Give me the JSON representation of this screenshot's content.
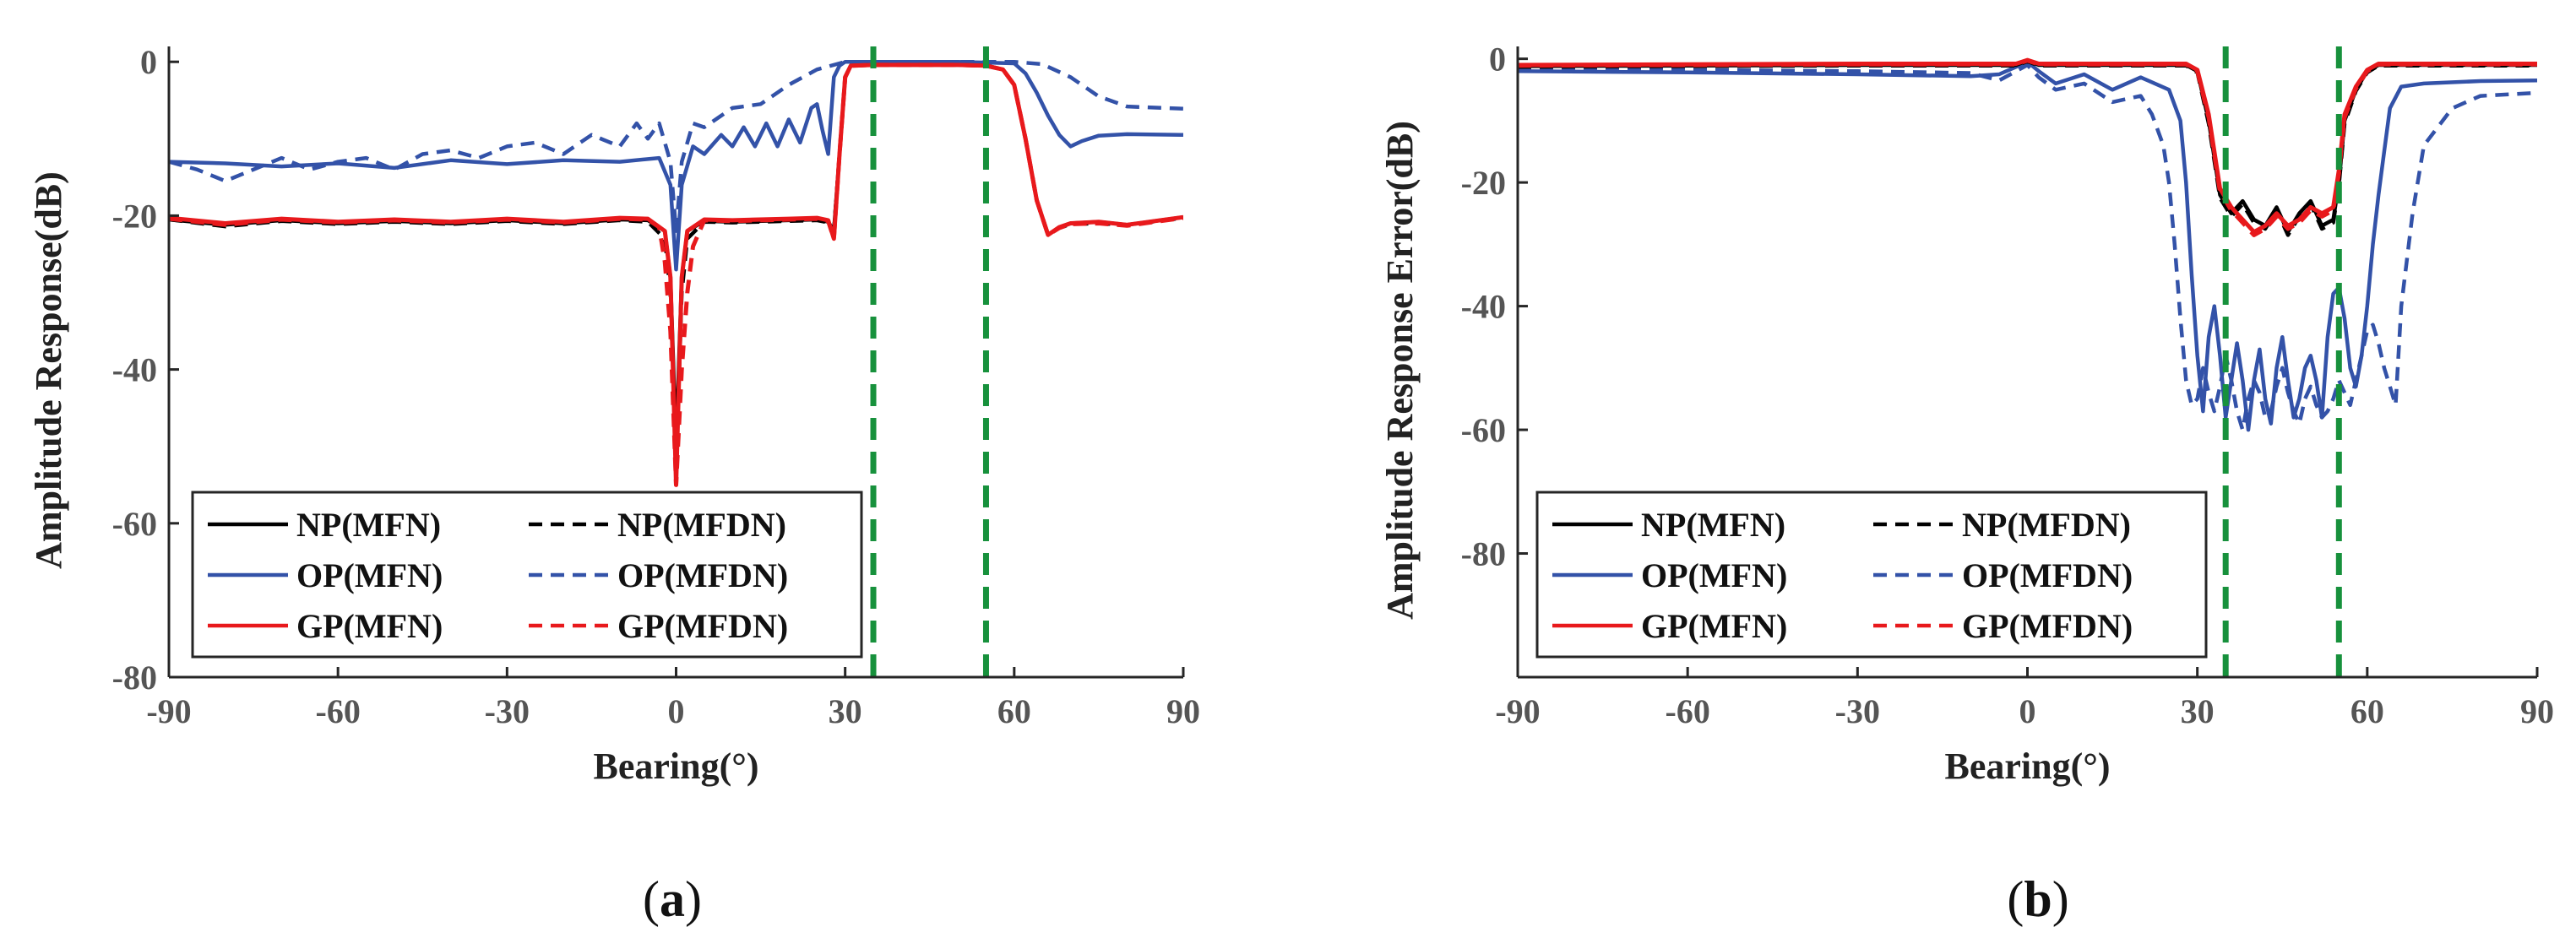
{
  "colors": {
    "NP": "#000000",
    "OP": "#3352a8",
    "GP": "#e8191c",
    "mark": "#17913c",
    "axis": "#262626"
  },
  "panels": [
    {
      "open": "(",
      "letter": "a",
      "close": ")"
    },
    {
      "open": "(",
      "letter": "b",
      "close": ")"
    }
  ],
  "chart_data": [
    {
      "type": "line",
      "title": "",
      "xlabel": "Bearing(°)",
      "ylabel": "Amplitude Response(dB)",
      "xlim": [
        -90,
        90
      ],
      "ylim": [
        -80,
        2
      ],
      "xticks": [
        -90,
        -60,
        -30,
        0,
        30,
        60,
        90
      ],
      "yticks": [
        0,
        -20,
        -40,
        -60,
        -80
      ],
      "xtick_labels": [
        "-90",
        "-60",
        "-30",
        "0",
        "30",
        "60",
        "90"
      ],
      "ytick_labels": [
        "0",
        "-20",
        "-40",
        "-60",
        "-80"
      ],
      "vlines": [
        35,
        55
      ],
      "legend": {
        "position": "bottom-left",
        "entries": [
          "NP(MFN)",
          "NP(MFDN)",
          "OP(MFN)",
          "OP(MFDN)",
          "GP(MFN)",
          "GP(MFDN)"
        ]
      },
      "series": [
        {
          "name": "NP(MFN)",
          "family": "NP",
          "style": "solid",
          "x": [
            -90,
            -80,
            -70,
            -60,
            -50,
            -40,
            -30,
            -20,
            -10,
            -5,
            -2,
            -1,
            0,
            1,
            2,
            5,
            10,
            20,
            25,
            27,
            28,
            29,
            30,
            31,
            35,
            40,
            50,
            55,
            58,
            60,
            62,
            64,
            66,
            68,
            70,
            75,
            80,
            90
          ],
          "y": [
            -20.5,
            -21.2,
            -20.6,
            -21,
            -20.7,
            -21,
            -20.6,
            -21,
            -20.5,
            -20.6,
            -22,
            -28,
            -50,
            -28,
            -22,
            -20.7,
            -20.8,
            -20.6,
            -20.5,
            -20.8,
            -22,
            -12,
            -2,
            -0.5,
            -0.4,
            -0.4,
            -0.4,
            -0.5,
            -1,
            -3,
            -10,
            -18,
            -22.5,
            -21.5,
            -21,
            -20.8,
            -21.2,
            -20.2
          ]
        },
        {
          "name": "NP(MFDN)",
          "family": "NP",
          "style": "dashed",
          "x": [
            -90,
            -80,
            -70,
            -60,
            -50,
            -40,
            -30,
            -20,
            -10,
            -5,
            -2,
            -1,
            0,
            1,
            2,
            5,
            10,
            20,
            25,
            27,
            28,
            29,
            30,
            31,
            35,
            40,
            50,
            55,
            58,
            60,
            62,
            64,
            66,
            68,
            70,
            75,
            80,
            90
          ],
          "y": [
            -20.5,
            -21.4,
            -20.7,
            -21.1,
            -20.8,
            -21.1,
            -20.7,
            -21.1,
            -20.6,
            -20.8,
            -23,
            -30,
            -53,
            -30,
            -23,
            -20.8,
            -20.9,
            -20.7,
            -20.6,
            -20.9,
            -22,
            -12,
            -2,
            -0.5,
            -0.4,
            -0.4,
            -0.4,
            -0.5,
            -1,
            -3,
            -10,
            -18,
            -22.5,
            -21.6,
            -21.1,
            -21,
            -21.2,
            -20.3
          ]
        },
        {
          "name": "OP(MFN)",
          "family": "OP",
          "style": "solid",
          "x": [
            -90,
            -80,
            -70,
            -60,
            -50,
            -40,
            -30,
            -20,
            -10,
            -3,
            -1,
            0,
            1,
            3,
            5,
            8,
            10,
            12,
            14,
            16,
            18,
            20,
            22,
            24,
            25,
            26,
            27,
            28,
            29,
            30,
            35,
            50,
            60,
            62,
            64,
            66,
            68,
            70,
            72,
            75,
            80,
            90
          ],
          "y": [
            -13,
            -13.2,
            -13.6,
            -13.2,
            -13.8,
            -12.8,
            -13.3,
            -12.8,
            -13,
            -12.5,
            -16,
            -27,
            -16,
            -11,
            -12,
            -9.5,
            -11,
            -8.5,
            -11,
            -8,
            -11,
            -7.5,
            -10.5,
            -6,
            -5.5,
            -9,
            -12,
            -2,
            -0.5,
            0,
            0,
            0,
            -0.2,
            -1.5,
            -4,
            -7,
            -9.5,
            -11,
            -10.3,
            -9.6,
            -9.4,
            -9.5
          ]
        },
        {
          "name": "OP(MFDN)",
          "family": "OP",
          "style": "dashed",
          "x": [
            -90,
            -85,
            -80,
            -75,
            -70,
            -65,
            -60,
            -55,
            -50,
            -45,
            -40,
            -35,
            -30,
            -25,
            -20,
            -15,
            -10,
            -7,
            -5,
            -3,
            -1,
            0,
            1,
            3,
            5,
            8,
            10,
            15,
            20,
            25,
            30,
            35,
            55,
            60,
            65,
            70,
            75,
            80,
            90
          ],
          "y": [
            -13,
            -14,
            -15.5,
            -14,
            -12.5,
            -14,
            -13,
            -12.5,
            -14,
            -12,
            -11.5,
            -12.5,
            -11,
            -10.5,
            -12,
            -9.5,
            -11,
            -8,
            -10,
            -8,
            -13,
            -22,
            -13,
            -8,
            -8.5,
            -7,
            -6,
            -5.5,
            -3,
            -1,
            0,
            0,
            0,
            0,
            -0.3,
            -2,
            -4.5,
            -5.8,
            -6.1
          ]
        },
        {
          "name": "GP(MFN)",
          "family": "GP",
          "style": "solid",
          "x": [
            -90,
            -80,
            -70,
            -60,
            -50,
            -40,
            -30,
            -20,
            -10,
            -5,
            -2,
            -1,
            0,
            1,
            2,
            5,
            10,
            20,
            25,
            27,
            28,
            29,
            30,
            31,
            35,
            40,
            50,
            55,
            58,
            60,
            62,
            64,
            66,
            68,
            70,
            75,
            80,
            90
          ],
          "y": [
            -20.3,
            -21,
            -20.4,
            -20.8,
            -20.5,
            -20.8,
            -20.4,
            -20.8,
            -20.3,
            -20.4,
            -22,
            -28,
            -55,
            -28,
            -22,
            -20.5,
            -20.6,
            -20.4,
            -20.3,
            -20.6,
            -23,
            -12,
            -2,
            -0.5,
            -0.4,
            -0.4,
            -0.4,
            -0.5,
            -1,
            -3,
            -10,
            -18,
            -22.5,
            -21.5,
            -21,
            -20.8,
            -21.2,
            -20.2
          ]
        },
        {
          "name": "GP(MFDN)",
          "family": "GP",
          "style": "dashed",
          "x": [
            -90,
            -80,
            -70,
            -60,
            -50,
            -40,
            -30,
            -20,
            -10,
            -5,
            -3,
            -2,
            -1,
            0,
            1,
            2,
            3,
            5,
            10,
            20,
            25,
            27,
            28,
            29,
            30,
            31,
            35,
            40,
            50,
            55,
            58,
            60,
            62,
            64,
            66,
            68,
            70,
            75,
            80,
            90
          ],
          "y": [
            -20.4,
            -21.2,
            -20.5,
            -20.9,
            -20.6,
            -20.9,
            -20.5,
            -20.9,
            -20.4,
            -20.5,
            -21.5,
            -26,
            -35,
            -55,
            -40,
            -30,
            -24,
            -20.6,
            -20.7,
            -20.5,
            -20.4,
            -20.7,
            -23,
            -12,
            -2,
            -0.5,
            -0.4,
            -0.4,
            -0.4,
            -0.5,
            -1,
            -3,
            -10,
            -18,
            -22.5,
            -21.6,
            -21.1,
            -21,
            -21.3,
            -20.3
          ]
        }
      ]
    },
    {
      "type": "line",
      "title": "",
      "xlabel": "Bearing(°)",
      "ylabel": "Amplitude Response Error(dB)",
      "xlim": [
        -90,
        90
      ],
      "ylim": [
        -100,
        2
      ],
      "xticks": [
        -90,
        -60,
        -30,
        0,
        30,
        60,
        90
      ],
      "yticks": [
        0,
        -20,
        -40,
        -60,
        -80
      ],
      "xtick_labels": [
        "-90",
        "-60",
        "-30",
        "0",
        "30",
        "60",
        "90"
      ],
      "ytick_labels": [
        "0",
        "-20",
        "-40",
        "-60",
        "-80"
      ],
      "vlines": [
        35,
        55
      ],
      "legend": {
        "position": "bottom-left",
        "entries": [
          "NP(MFN)",
          "NP(MFDN)",
          "OP(MFN)",
          "OP(MFDN)",
          "GP(MFN)",
          "GP(MFDN)"
        ]
      },
      "series": [
        {
          "name": "NP(MFN)",
          "family": "NP",
          "style": "solid",
          "x": [
            -90,
            -60,
            -30,
            -2,
            0,
            2,
            20,
            28,
            30,
            32,
            34,
            36,
            38,
            40,
            42,
            44,
            46,
            48,
            50,
            52,
            54,
            55,
            56,
            58,
            60,
            62,
            65,
            70,
            80,
            90
          ],
          "y": [
            -1.2,
            -1.1,
            -1,
            -1,
            -0.3,
            -1,
            -1,
            -1,
            -2,
            -10,
            -22,
            -25,
            -23,
            -26,
            -27,
            -24,
            -28,
            -25,
            -23,
            -27,
            -26,
            -20,
            -10,
            -5,
            -2,
            -1,
            -1,
            -1,
            -1,
            -1
          ]
        },
        {
          "name": "NP(MFDN)",
          "family": "NP",
          "style": "dashed",
          "x": [
            -90,
            -60,
            -30,
            -2,
            0,
            2,
            20,
            28,
            30,
            32,
            34,
            36,
            38,
            40,
            42,
            44,
            46,
            48,
            50,
            52,
            54,
            55,
            56,
            58,
            60,
            62,
            65,
            70,
            80,
            90
          ],
          "y": [
            -1.3,
            -1.2,
            -1.1,
            -1.1,
            -0.4,
            -1.1,
            -1.1,
            -1.1,
            -2.2,
            -10.5,
            -22.5,
            -25.5,
            -23.5,
            -26.5,
            -27.5,
            -24.5,
            -28.5,
            -25.5,
            -23.5,
            -27.5,
            -26.5,
            -20.5,
            -10.5,
            -5.2,
            -2.2,
            -1.1,
            -1.1,
            -1.1,
            -1.1,
            -1.1
          ]
        },
        {
          "name": "OP(MFN)",
          "family": "OP",
          "style": "solid",
          "x": [
            -90,
            -60,
            -30,
            -10,
            -5,
            0,
            2,
            5,
            10,
            15,
            20,
            25,
            27,
            28,
            29,
            30,
            31,
            32,
            33,
            34,
            35,
            36,
            37,
            38,
            39,
            40,
            41,
            42,
            43,
            44,
            45,
            46,
            47,
            48,
            49,
            50,
            51,
            52,
            53,
            54,
            55,
            56,
            57,
            58,
            59,
            60,
            61,
            62,
            63,
            64,
            66,
            70,
            80,
            90
          ],
          "y": [
            -2,
            -2.2,
            -2.5,
            -2.8,
            -2.5,
            -0.5,
            -2,
            -4,
            -2.5,
            -5,
            -3,
            -5,
            -10,
            -20,
            -35,
            -48,
            -57,
            -45,
            -40,
            -48,
            -58,
            -52,
            -46,
            -52,
            -60,
            -52,
            -47,
            -55,
            -59,
            -50,
            -45,
            -52,
            -58,
            -55,
            -50,
            -48,
            -52,
            -58,
            -45,
            -38,
            -37,
            -42,
            -50,
            -53,
            -48,
            -40,
            -30,
            -22,
            -15,
            -8,
            -4.5,
            -4,
            -3.6,
            -3.5
          ]
        },
        {
          "name": "OP(MFDN)",
          "family": "OP",
          "style": "dashed",
          "x": [
            -90,
            -60,
            -30,
            -10,
            -5,
            0,
            2,
            5,
            10,
            15,
            20,
            22,
            24,
            25,
            26,
            27,
            28,
            29,
            30,
            31,
            32,
            33,
            34,
            35,
            36,
            37,
            38,
            39,
            40,
            41,
            42,
            43,
            44,
            45,
            46,
            47,
            48,
            49,
            50,
            51,
            52,
            53,
            54,
            55,
            56,
            57,
            58,
            59,
            60,
            61,
            62,
            63,
            64,
            65,
            66,
            68,
            70,
            75,
            80,
            90
          ],
          "y": [
            -1.5,
            -1.8,
            -2,
            -2.3,
            -3.5,
            -1,
            -3,
            -5,
            -4,
            -7,
            -6,
            -9,
            -14,
            -20,
            -30,
            -42,
            -52,
            -56,
            -55,
            -50,
            -54,
            -57,
            -53,
            -48,
            -52,
            -57,
            -60,
            -55,
            -52,
            -54,
            -58,
            -57,
            -53,
            -50,
            -54,
            -57,
            -59,
            -55,
            -53,
            -56,
            -58,
            -57,
            -55,
            -52,
            -54,
            -56,
            -52,
            -48,
            -44,
            -43,
            -46,
            -50,
            -53,
            -56,
            -40,
            -25,
            -14,
            -8,
            -6,
            -5.5
          ]
        },
        {
          "name": "GP(MFN)",
          "family": "GP",
          "style": "solid",
          "x": [
            -90,
            -60,
            -30,
            -2,
            0,
            2,
            20,
            28,
            30,
            32,
            34,
            36,
            38,
            40,
            42,
            44,
            46,
            48,
            50,
            52,
            54,
            55,
            56,
            58,
            60,
            62,
            65,
            70,
            80,
            90
          ],
          "y": [
            -1,
            -0.9,
            -0.8,
            -0.8,
            -0.2,
            -0.8,
            -0.8,
            -0.8,
            -1.8,
            -9,
            -21,
            -24,
            -26,
            -28,
            -27,
            -25,
            -27,
            -26,
            -24,
            -25,
            -24,
            -18,
            -9,
            -4.5,
            -1.8,
            -0.8,
            -0.8,
            -0.8,
            -0.8,
            -0.8
          ]
        },
        {
          "name": "GP(MFDN)",
          "family": "GP",
          "style": "dashed",
          "x": [
            -90,
            -60,
            -30,
            -2,
            0,
            2,
            20,
            28,
            30,
            32,
            34,
            36,
            38,
            40,
            42,
            44,
            46,
            48,
            50,
            52,
            54,
            55,
            56,
            58,
            60,
            62,
            65,
            70,
            80,
            90
          ],
          "y": [
            -1.1,
            -1,
            -0.9,
            -0.9,
            -0.3,
            -0.9,
            -0.9,
            -0.9,
            -2,
            -9.5,
            -21.5,
            -24.5,
            -26.5,
            -28.5,
            -27.5,
            -25.5,
            -27.5,
            -26.5,
            -24.5,
            -25.5,
            -24.5,
            -18.5,
            -9.5,
            -4.8,
            -2,
            -0.9,
            -0.9,
            -0.9,
            -0.9,
            -0.9
          ]
        }
      ]
    }
  ]
}
